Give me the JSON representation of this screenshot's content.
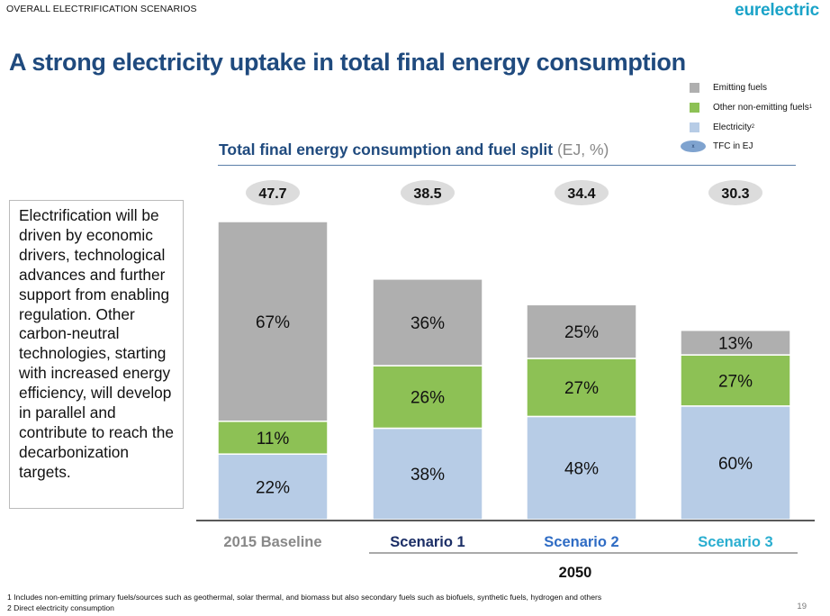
{
  "header": {
    "section_label": "OVERALL ELECTRIFICATION SCENARIOS",
    "brand": "eurelectric",
    "headline": "A strong electricity uptake in total final energy consumption"
  },
  "legend": {
    "items": [
      {
        "label": "Emitting fuels",
        "sup": "",
        "color": "#afafaf"
      },
      {
        "label": "Other non-emitting fuels",
        "sup": "1",
        "color": "#8dc155"
      },
      {
        "label": "Electricity",
        "sup": "2",
        "color": "#b7cce6"
      }
    ],
    "tfc_label": "TFC in EJ",
    "tfc_marker": "x",
    "tfc_color": "#7fa3cf"
  },
  "textbox": {
    "text": "Electrification will be driven by economic drivers, technological advances and further support from enabling regulation. Other carbon-neutral technologies, starting with increased energy efficiency, will develop in parallel and contribute to reach the decarbonization targets."
  },
  "chart_data": {
    "type": "bar",
    "stacked": true,
    "title": "Total final energy consumption and fuel split",
    "title_unit": "(EJ, %)",
    "categories": [
      "2015 Baseline",
      "Scenario 1",
      "Scenario 2",
      "Scenario 3"
    ],
    "category_colors": [
      "#888888",
      "#1b2e66",
      "#2f6cc4",
      "#2aaed0"
    ],
    "group_label": "2050",
    "group_categories": [
      "Scenario 1",
      "Scenario 2",
      "Scenario 3"
    ],
    "totals_ej": [
      47.7,
      38.5,
      34.4,
      30.3
    ],
    "series": [
      {
        "name": "Electricity",
        "color": "#b7cce6",
        "values_pct": [
          22,
          38,
          48,
          60
        ]
      },
      {
        "name": "Other non-emitting fuels",
        "color": "#8dc155",
        "values_pct": [
          11,
          26,
          27,
          27
        ]
      },
      {
        "name": "Emitting fuels",
        "color": "#afafaf",
        "values_pct": [
          67,
          36,
          25,
          13
        ]
      }
    ],
    "ylabel": "EJ",
    "ylim": [
      0,
      47.7
    ],
    "grid": false,
    "legend_position": "top-right"
  },
  "footnotes": [
    "1 Includes non-emitting primary fuels/sources such as geothermal, solar thermal, and biomass but also secondary fuels such as biofuels, synthetic fuels, hydrogen and others",
    "2 Direct electricity consumption"
  ],
  "page_number": "19"
}
